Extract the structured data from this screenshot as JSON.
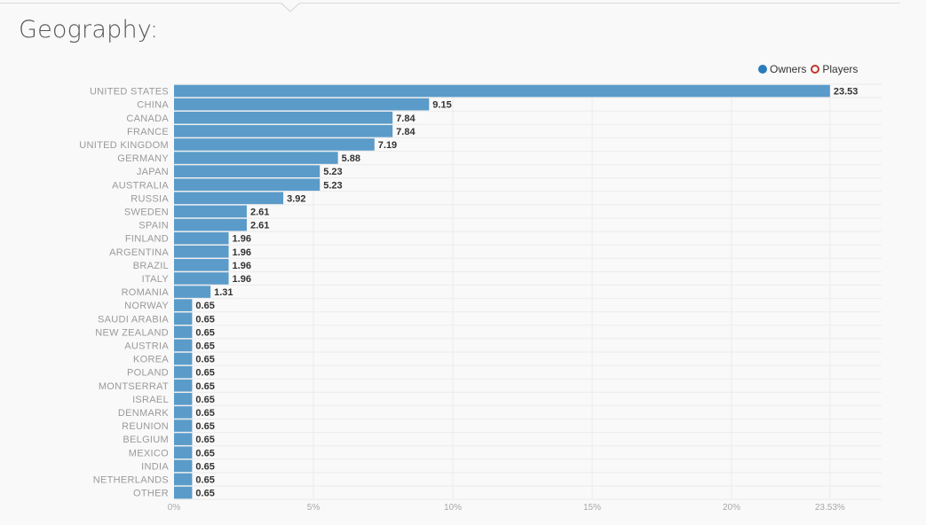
{
  "section": {
    "title": "Geography:"
  },
  "legend": {
    "items": [
      {
        "label": "Owners",
        "color": "#2b7bba",
        "style": "filled"
      },
      {
        "label": "Players",
        "color": "#c0392b",
        "style": "hollow"
      }
    ]
  },
  "chart_data": {
    "type": "bar",
    "orientation": "horizontal",
    "categories": [
      "UNITED STATES",
      "CHINA",
      "CANADA",
      "FRANCE",
      "UNITED KINGDOM",
      "GERMANY",
      "JAPAN",
      "AUSTRALIA",
      "RUSSIA",
      "SWEDEN",
      "SPAIN",
      "FINLAND",
      "ARGENTINA",
      "BRAZIL",
      "ITALY",
      "ROMANIA",
      "NORWAY",
      "SAUDI ARABIA",
      "NEW ZEALAND",
      "AUSTRIA",
      "KOREA",
      "POLAND",
      "MONTSERRAT",
      "ISRAEL",
      "DENMARK",
      "REUNION",
      "BELGIUM",
      "MEXICO",
      "INDIA",
      "NETHERLANDS",
      "OTHER"
    ],
    "series": [
      {
        "name": "Owners",
        "color": "#5a9bc9",
        "values": [
          23.53,
          9.15,
          7.84,
          7.84,
          7.19,
          5.88,
          5.23,
          5.23,
          3.92,
          2.61,
          2.61,
          1.96,
          1.96,
          1.96,
          1.96,
          1.31,
          0.65,
          0.65,
          0.65,
          0.65,
          0.65,
          0.65,
          0.65,
          0.65,
          0.65,
          0.65,
          0.65,
          0.65,
          0.65,
          0.65,
          0.65
        ]
      }
    ],
    "xlim": [
      0,
      25
    ],
    "xticks": [
      {
        "value": 0,
        "label": "0%"
      },
      {
        "value": 5,
        "label": "5%"
      },
      {
        "value": 10,
        "label": "10%"
      },
      {
        "value": 15,
        "label": "15%"
      },
      {
        "value": 20,
        "label": "20%"
      },
      {
        "value": 23.53,
        "label": "23.53%"
      }
    ],
    "grid": true,
    "legend_position": "top-right"
  }
}
